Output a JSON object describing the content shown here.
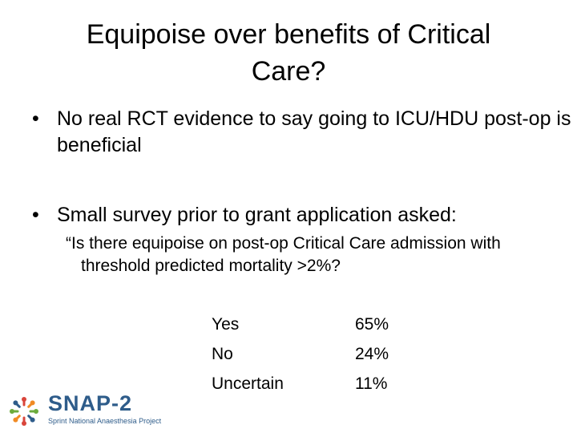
{
  "slide": {
    "title": "Equipoise over benefits of Critical Care?",
    "bullets": [
      "No real RCT evidence to say going to ICU/HDU post-op is beneficial",
      "Small survey prior to grant application asked:"
    ],
    "bullet_glyph": "•",
    "quote": "“Is there equipoise on post-op Critical Care admission with threshold predicted mortality >2%?",
    "results": [
      {
        "label": "Yes",
        "value": "65%"
      },
      {
        "label": "No",
        "value": "24%"
      },
      {
        "label": "Uncertain",
        "value": "11%"
      }
    ]
  },
  "logo": {
    "name": "SNAP-2",
    "subtitle": "Sprint National Anaesthesia Project",
    "colors": {
      "blue": "#2e5c8a",
      "red": "#d9453b",
      "orange": "#f08a24",
      "green": "#6cab3c"
    }
  }
}
